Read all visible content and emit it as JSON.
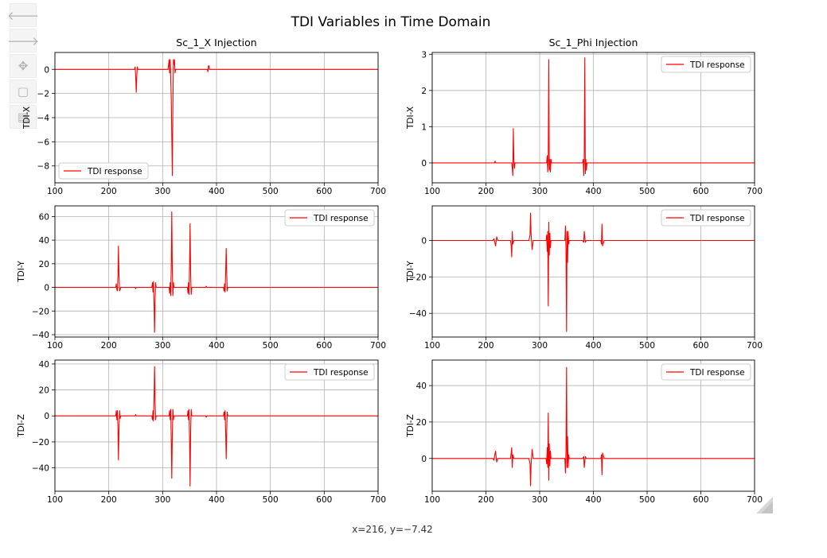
{
  "toolbar": {
    "buttons": [
      {
        "name": "back-button",
        "icon": "arrow-left-icon",
        "glyph": "🡐"
      },
      {
        "name": "forward-button",
        "icon": "arrow-right-icon",
        "glyph": "🡒"
      },
      {
        "name": "pan-button",
        "icon": "move-icon",
        "glyph": "✥"
      },
      {
        "name": "zoom-button",
        "icon": "zoom-rect-icon",
        "glyph": "▢"
      },
      {
        "name": "save-button",
        "icon": "save-icon",
        "glyph": "▤"
      }
    ]
  },
  "figure": {
    "suptitle": "TDI Variables in Time Domain"
  },
  "status": {
    "coords": "x=216, y=−7.42"
  },
  "colors": {
    "line": "#ff0000",
    "grid": "#b0b0b0",
    "legend_edge": "#cccccc"
  },
  "chart_data": [
    {
      "type": "line",
      "title": "Sc_1_X Injection",
      "xlabel": "",
      "ylabel": "TDI-X",
      "xlim": [
        100,
        700
      ],
      "ylim": [
        -9.4,
        1.4
      ],
      "xticks": [
        100,
        200,
        300,
        400,
        500,
        600,
        700
      ],
      "yticks": [
        -8,
        -6,
        -4,
        -2,
        0
      ],
      "ytick_labels": [
        "−8",
        "−6",
        "−4",
        "−2",
        "0"
      ],
      "grid": true,
      "legend": "lower-left",
      "series": [
        {
          "name": "TDI response",
          "color": "#ff0000",
          "x": [
            100,
            248,
            249,
            250,
            251,
            252,
            253,
            254,
            310,
            312,
            313,
            314,
            316,
            318,
            319,
            320,
            321,
            322,
            323,
            324,
            383,
            384,
            385,
            386,
            387,
            700
          ],
          "y": [
            0,
            0,
            0.2,
            -0.6,
            -1.9,
            -0.5,
            0.2,
            0,
            0,
            0.8,
            -0.3,
            0.8,
            -2.5,
            -8.8,
            -3,
            0.8,
            0.4,
            0.8,
            -0.3,
            0,
            0,
            -0.2,
            0.3,
            0.3,
            0,
            0
          ]
        }
      ]
    },
    {
      "type": "line",
      "title": "Sc_1_Phi Injection",
      "xlabel": "",
      "ylabel": "TDI-X",
      "xlim": [
        100,
        700
      ],
      "ylim": [
        -0.55,
        3.05
      ],
      "xticks": [
        100,
        200,
        300,
        400,
        500,
        600,
        700
      ],
      "yticks": [
        0,
        1,
        2,
        3
      ],
      "ytick_labels": [
        "0",
        "1",
        "2",
        "3"
      ],
      "grid": true,
      "legend": "upper-right",
      "series": [
        {
          "name": "TDI response",
          "color": "#ff0000",
          "x": [
            100,
            216,
            217,
            218,
            248,
            249,
            250,
            251,
            252,
            253,
            254,
            313,
            314,
            315,
            316,
            317,
            318,
            319,
            320,
            321,
            322,
            380,
            381,
            382,
            383,
            384,
            385,
            386,
            387,
            388,
            700
          ],
          "y": [
            0,
            0,
            0.05,
            0,
            0,
            -0.15,
            -0.35,
            0.95,
            0.1,
            -0.15,
            0,
            0,
            0.2,
            -0.25,
            0.1,
            2.85,
            -0.2,
            0.1,
            -0.25,
            0.1,
            0,
            0,
            0.1,
            -0.35,
            0.1,
            2.9,
            -0.3,
            0.1,
            -0.2,
            0,
            0
          ]
        }
      ]
    },
    {
      "type": "line",
      "title": "",
      "xlabel": "",
      "ylabel": "TDI-Y",
      "xlim": [
        100,
        700
      ],
      "ylim": [
        -42,
        69
      ],
      "xticks": [
        100,
        200,
        300,
        400,
        500,
        600,
        700
      ],
      "yticks": [
        -40,
        -20,
        0,
        20,
        40,
        60
      ],
      "ytick_labels": [
        "−40",
        "−20",
        "0",
        "20",
        "40",
        "60"
      ],
      "grid": true,
      "legend": "upper-right",
      "series": [
        {
          "name": "TDI response",
          "color": "#ff0000",
          "x": [
            100,
            213,
            214,
            215,
            216,
            217,
            218,
            219,
            220,
            221,
            222,
            249,
            250,
            251,
            280,
            281,
            282,
            283,
            284,
            285,
            286,
            287,
            288,
            312,
            313,
            314,
            315,
            316,
            317,
            318,
            319,
            320,
            321,
            346,
            347,
            348,
            349,
            350,
            351,
            352,
            353,
            354,
            380,
            381,
            382,
            413,
            414,
            415,
            416,
            417,
            418,
            419,
            420,
            421,
            700
          ],
          "y": [
            0,
            0,
            3,
            -2,
            -3,
            10,
            35,
            10,
            -3,
            -2,
            0,
            0,
            -1,
            0,
            0,
            4,
            -4,
            5,
            -12,
            -38,
            -10,
            4,
            0,
            0,
            -5,
            4,
            -7,
            20,
            64,
            15,
            -7,
            4,
            0,
            0,
            -5,
            4,
            -6,
            20,
            54,
            12,
            -6,
            0,
            0,
            1,
            0,
            0,
            -3,
            3,
            -4,
            12,
            33,
            10,
            -3,
            0,
            0
          ]
        }
      ]
    },
    {
      "type": "line",
      "title": "",
      "xlabel": "",
      "ylabel": "TDI-Y",
      "xlim": [
        100,
        700
      ],
      "ylim": [
        -53,
        19
      ],
      "xticks": [
        100,
        200,
        300,
        400,
        500,
        600,
        700
      ],
      "yticks": [
        -40,
        -20,
        0
      ],
      "ytick_labels": [
        "−40",
        "−20",
        "0"
      ],
      "grid": true,
      "legend": "upper-right",
      "series": [
        {
          "name": "TDI response",
          "color": "#ff0000",
          "x": [
            100,
            213,
            215,
            218,
            220,
            222,
            246,
            247,
            248,
            249,
            250,
            252,
            280,
            282,
            283,
            284,
            286,
            288,
            312,
            313,
            314,
            315,
            316,
            317,
            318,
            319,
            320,
            321,
            347,
            348,
            349,
            350,
            351,
            352,
            353,
            354,
            355,
            380,
            382,
            383,
            385,
            387,
            414,
            415,
            416,
            417,
            418,
            420,
            700
          ],
          "y": [
            0,
            0,
            1,
            -3,
            2,
            0,
            0,
            -3,
            -9,
            5,
            -2,
            0,
            0,
            3,
            15,
            4,
            -5,
            0,
            0,
            3,
            -6,
            5,
            -36,
            10,
            -8,
            4,
            -4,
            0,
            0,
            8,
            -5,
            -50,
            5,
            -12,
            5,
            -2,
            0,
            0,
            -1,
            5,
            -1,
            0,
            0,
            -2,
            9,
            -3,
            -2,
            0,
            0
          ]
        }
      ]
    },
    {
      "type": "line",
      "title": "",
      "xlabel": "",
      "ylabel": "TDI-Z",
      "xlim": [
        100,
        700
      ],
      "ylim": [
        -58,
        43
      ],
      "xticks": [
        100,
        200,
        300,
        400,
        500,
        600,
        700
      ],
      "yticks": [
        -40,
        -20,
        0,
        20,
        40
      ],
      "ytick_labels": [
        "−40",
        "−20",
        "0",
        "20",
        "40"
      ],
      "grid": true,
      "legend": "upper-right",
      "series": [
        {
          "name": "TDI response",
          "color": "#ff0000",
          "x": [
            100,
            213,
            214,
            215,
            216,
            217,
            218,
            219,
            220,
            221,
            222,
            249,
            250,
            251,
            280,
            281,
            282,
            283,
            284,
            285,
            286,
            287,
            288,
            312,
            313,
            314,
            315,
            316,
            317,
            318,
            319,
            320,
            321,
            346,
            347,
            348,
            349,
            350,
            351,
            352,
            353,
            354,
            380,
            381,
            382,
            413,
            414,
            415,
            416,
            417,
            418,
            419,
            420,
            421,
            700
          ],
          "y": [
            0,
            0,
            4,
            -3,
            4,
            -10,
            -34,
            -10,
            4,
            -2,
            0,
            0,
            1,
            0,
            0,
            -3,
            4,
            -4,
            12,
            38,
            10,
            -3,
            0,
            0,
            4,
            -3,
            5,
            -20,
            -48,
            -15,
            5,
            -3,
            0,
            0,
            4,
            -3,
            5,
            -20,
            -54,
            -12,
            5,
            0,
            0,
            -1,
            0,
            0,
            3,
            -3,
            4,
            -12,
            -33,
            -10,
            3,
            0,
            0
          ]
        }
      ]
    },
    {
      "type": "line",
      "title": "",
      "xlabel": "",
      "ylabel": "TDI-Z",
      "xlim": [
        100,
        700
      ],
      "ylim": [
        -18,
        54
      ],
      "xticks": [
        100,
        200,
        300,
        400,
        500,
        600,
        700
      ],
      "yticks": [
        0,
        20,
        40
      ],
      "ytick_labels": [
        "0",
        "20",
        "40"
      ],
      "grid": true,
      "legend": "upper-right",
      "series": [
        {
          "name": "TDI response",
          "color": "#ff0000",
          "x": [
            100,
            213,
            215,
            217,
            218,
            220,
            222,
            246,
            247,
            248,
            249,
            250,
            252,
            280,
            282,
            283,
            284,
            286,
            288,
            312,
            313,
            314,
            315,
            316,
            317,
            318,
            319,
            320,
            321,
            347,
            348,
            349,
            350,
            351,
            352,
            353,
            354,
            355,
            380,
            382,
            383,
            385,
            387,
            414,
            415,
            416,
            417,
            418,
            420,
            700
          ],
          "y": [
            0,
            0,
            -1,
            3,
            4,
            -2,
            0,
            0,
            3,
            6,
            -5,
            2,
            0,
            0,
            -3,
            -15,
            -4,
            5,
            0,
            0,
            -3,
            6,
            -5,
            25,
            -12,
            8,
            -4,
            4,
            0,
            0,
            -8,
            5,
            50,
            -5,
            12,
            -5,
            2,
            0,
            0,
            1,
            -5,
            1,
            0,
            0,
            2,
            -9,
            3,
            2,
            0,
            0
          ]
        }
      ]
    }
  ]
}
